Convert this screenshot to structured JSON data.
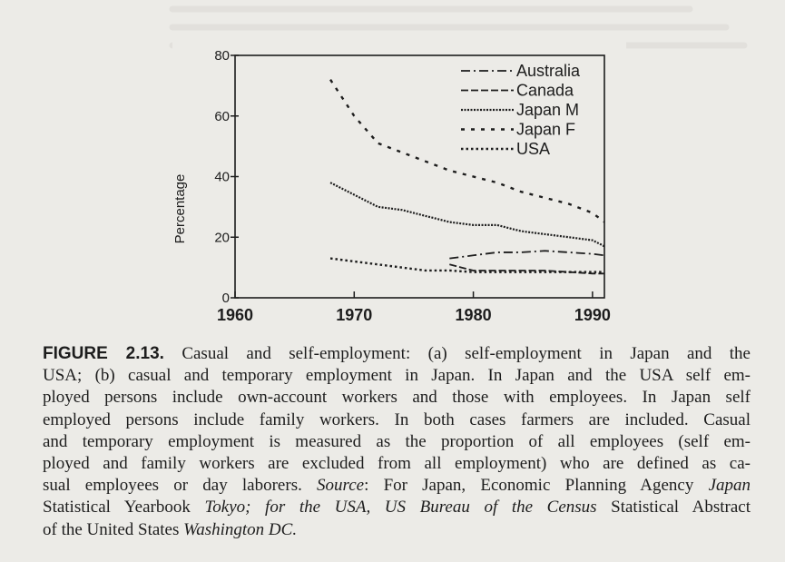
{
  "chart_data": {
    "type": "line",
    "title": "",
    "xlabel": "",
    "ylabel": "Percentage",
    "xlim": [
      1960,
      1991
    ],
    "ylim": [
      0,
      80
    ],
    "xticks": [
      1960,
      1970,
      1980,
      1990
    ],
    "yticks": [
      0,
      20,
      40,
      60,
      80
    ],
    "grid": false,
    "legend_position": "top-right",
    "series": [
      {
        "name": "Australia",
        "style": "dash-dot",
        "x": [
          1978,
          1980,
          1982,
          1984,
          1986,
          1988,
          1990,
          1991
        ],
        "y": [
          13,
          14,
          15,
          15,
          15.5,
          15,
          14.5,
          14
        ]
      },
      {
        "name": "Canada",
        "style": "dashed",
        "x": [
          1978,
          1980,
          1982,
          1984,
          1986,
          1988,
          1990,
          1991
        ],
        "y": [
          11,
          9,
          9,
          9,
          9,
          8.5,
          8,
          8
        ]
      },
      {
        "name": "Japan M",
        "style": "dense-dotted",
        "x": [
          1968,
          1970,
          1972,
          1974,
          1976,
          1978,
          1980,
          1982,
          1984,
          1986,
          1988,
          1990,
          1991
        ],
        "y": [
          38,
          34,
          30,
          29,
          27,
          25,
          24,
          24,
          22,
          21,
          20,
          19,
          17
        ]
      },
      {
        "name": "Japan F",
        "style": "sparse-dashed",
        "x": [
          1968,
          1970,
          1972,
          1974,
          1976,
          1978,
          1980,
          1982,
          1984,
          1986,
          1988,
          1990,
          1991
        ],
        "y": [
          72,
          60,
          51,
          48,
          45,
          42,
          40,
          38,
          35,
          33,
          31,
          28,
          25
        ]
      },
      {
        "name": "USA",
        "style": "dotted",
        "x": [
          1968,
          1970,
          1972,
          1974,
          1976,
          1978,
          1980,
          1982,
          1984,
          1986,
          1988,
          1990,
          1991
        ],
        "y": [
          13,
          12,
          11,
          10,
          9,
          9,
          8.5,
          8.5,
          8.5,
          8.5,
          8.5,
          8.5,
          8.5
        ]
      }
    ]
  },
  "caption": {
    "figure_label": "FIGURE 2.13.",
    "lines": [
      [
        "Casual and self-employment: (a) self-employment in Japan and the"
      ],
      [
        "USA; (b) casual and temporary employment in Japan. In Japan and the USA self em-"
      ],
      [
        "ployed persons include own-account workers and those with employees. In Japan self"
      ],
      [
        "employed persons include family workers. In both cases farmers are included. Casual"
      ],
      [
        "and temporary employment is measured as the proportion of all employees (self em-"
      ],
      [
        "ployed and family workers are excluded from all employment) who are defined as ca-"
      ],
      [
        "sual employees or day laborers. ",
        "Source",
        ": For Japan, Economic Planning Agency ",
        "Japan"
      ],
      [
        "Statistical Yearbook",
        " Tokyo; for the USA, US Bureau of the Census ",
        "Statistical Abstract"
      ],
      [
        "of the United States",
        " Washington DC."
      ]
    ]
  }
}
